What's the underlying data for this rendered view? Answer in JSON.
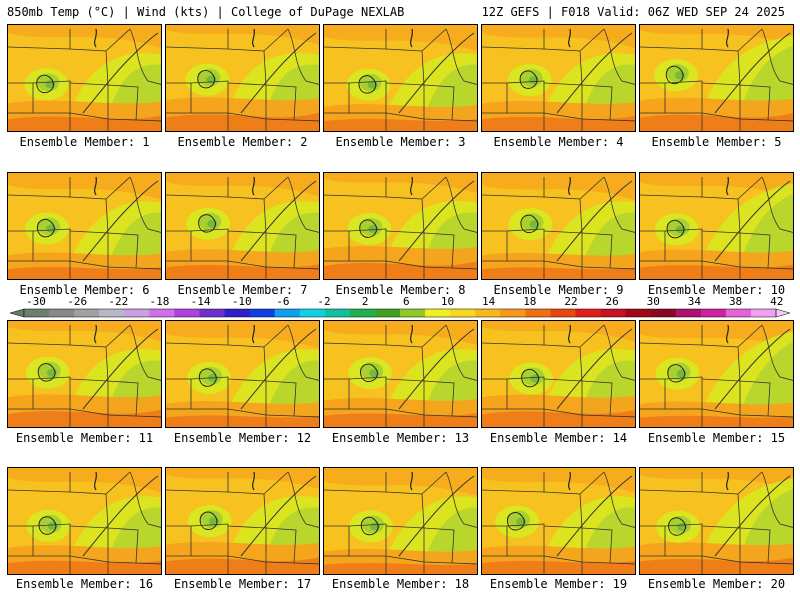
{
  "header": {
    "left": "850mb Temp (°C) | Wind (kts) | College of DuPage NEXLAB",
    "right": "12Z GEFS | F018 Valid: 06Z WED SEP 24 2025"
  },
  "panels": [
    {
      "label": "Ensemble Member: 1"
    },
    {
      "label": "Ensemble Member: 2"
    },
    {
      "label": "Ensemble Member: 3"
    },
    {
      "label": "Ensemble Member: 4"
    },
    {
      "label": "Ensemble Member: 5"
    },
    {
      "label": "Ensemble Member: 6"
    },
    {
      "label": "Ensemble Member: 7"
    },
    {
      "label": "Ensemble Member: 8"
    },
    {
      "label": "Ensemble Member: 9"
    },
    {
      "label": "Ensemble Member: 10"
    },
    {
      "label": "Ensemble Member: 11"
    },
    {
      "label": "Ensemble Member: 12"
    },
    {
      "label": "Ensemble Member: 13"
    },
    {
      "label": "Ensemble Member: 14"
    },
    {
      "label": "Ensemble Member: 15"
    },
    {
      "label": "Ensemble Member: 16"
    },
    {
      "label": "Ensemble Member: 17"
    },
    {
      "label": "Ensemble Member: 18"
    },
    {
      "label": "Ensemble Member: 19"
    },
    {
      "label": "Ensemble Member: 20"
    }
  ],
  "colorbar": {
    "ticks": [
      "-30",
      "-26",
      "-22",
      "-18",
      "-14",
      "-10",
      "-6",
      "-2",
      "2",
      "6",
      "10",
      "14",
      "18",
      "22",
      "26",
      "30",
      "34",
      "38",
      "42"
    ],
    "colors": [
      "#6f7f6f",
      "#888888",
      "#a0a0a0",
      "#b8b8c8",
      "#c8a0e0",
      "#d070e8",
      "#b040e0",
      "#7030d0",
      "#3020c8",
      "#1040e0",
      "#10a0f0",
      "#10d0e8",
      "#10c0a0",
      "#20b050",
      "#40a020",
      "#90c828",
      "#f0f020",
      "#f8d820",
      "#f8b818",
      "#f89818",
      "#f07010",
      "#e84810",
      "#e02018",
      "#c81020",
      "#a00818",
      "#880820",
      "#b01070",
      "#d020a0",
      "#e860d8",
      "#f0a0f0"
    ],
    "lo_color": "#608060",
    "hi_color": "#f8c8f8"
  },
  "map_colors": {
    "land_base": "#f7c21f",
    "cool": "#d8e820",
    "cooler": "#a8d030",
    "coolest": "#78b838",
    "warm": "#f5a21c",
    "hot": "#ee7a18",
    "outline": "#333333"
  }
}
